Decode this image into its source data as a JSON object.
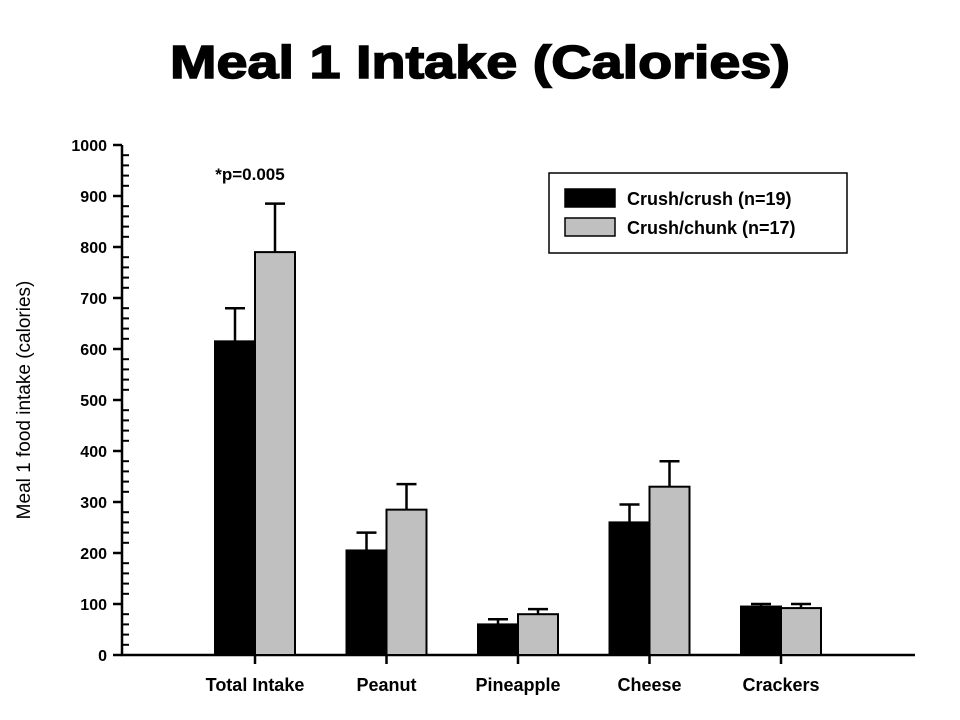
{
  "chart_data": {
    "type": "bar",
    "title": "Meal 1 Intake (Calories)",
    "ylabel": "Meal 1 food intake (calories)",
    "xlabel": "",
    "ylim": [
      0,
      1000
    ],
    "y_ticks": [
      "0",
      "100",
      "200",
      "300",
      "400",
      "500",
      "600",
      "700",
      "800",
      "900",
      "1000"
    ],
    "categories": [
      "Total Intake",
      "Peanut",
      "Pineapple",
      "Cheese",
      "Crackers"
    ],
    "series": [
      {
        "name": "Crush/crush (n=19)",
        "color": "#000000",
        "values": [
          615,
          205,
          60,
          260,
          95
        ],
        "error_plus": [
          65,
          35,
          10,
          35,
          5
        ]
      },
      {
        "name": "Crush/chunk (n=17)",
        "color": "#c0c0c0",
        "values": [
          790,
          285,
          80,
          330,
          92
        ],
        "error_plus": [
          95,
          50,
          10,
          50,
          8
        ]
      }
    ],
    "legend_position": "top-right",
    "annotations": [
      {
        "text": "*p=0.005",
        "category": "Total Intake"
      }
    ],
    "grid": false
  }
}
